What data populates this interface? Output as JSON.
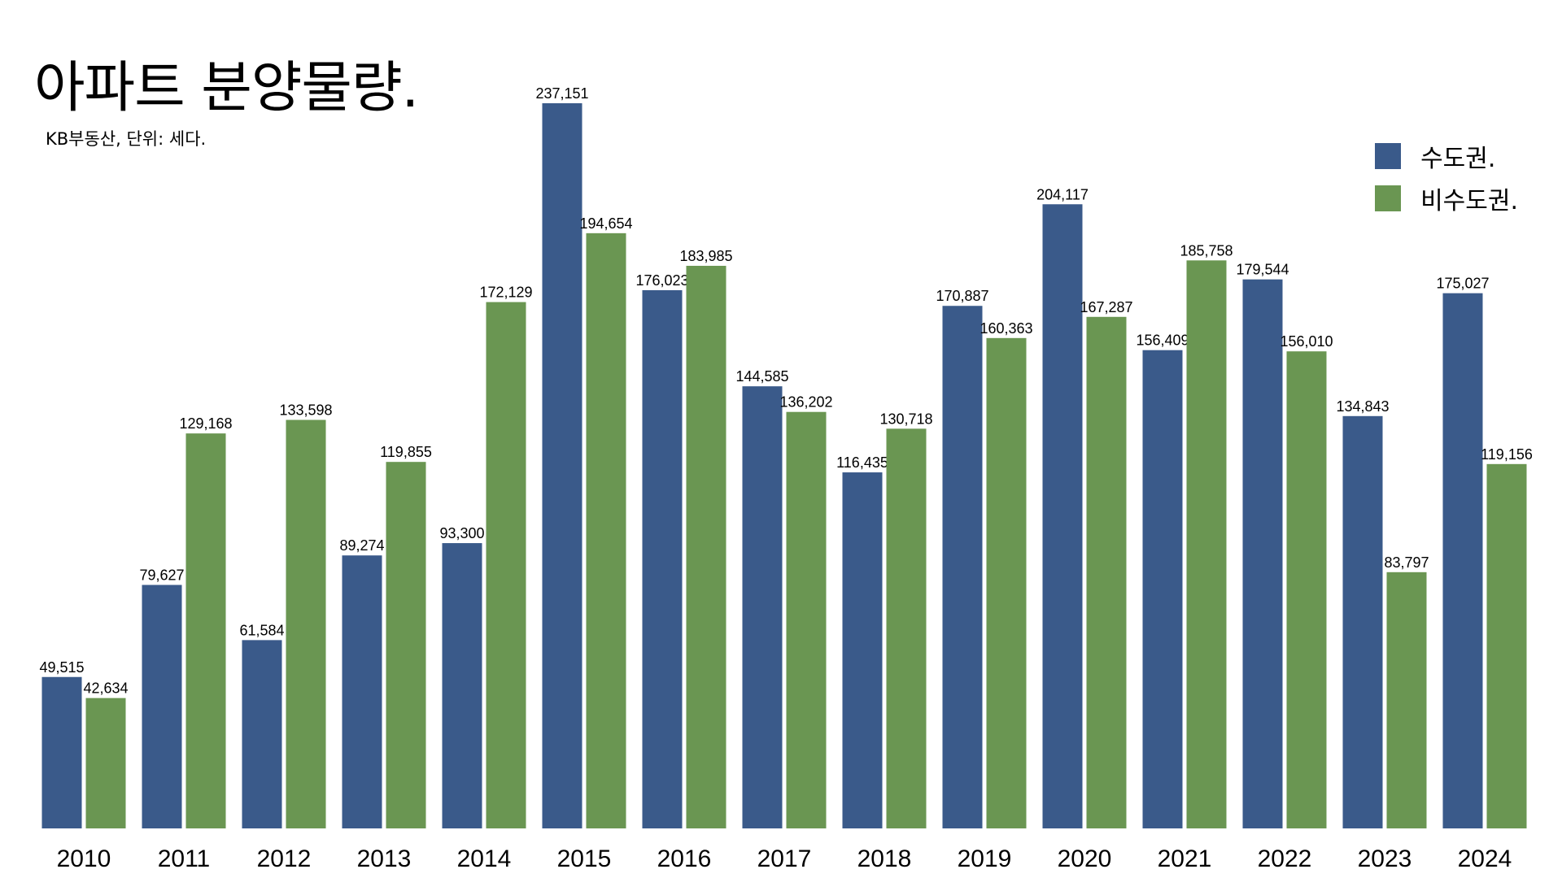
{
  "header": {
    "title": "아파트 분양물량.",
    "subtitle": "KB부동산, 단위: 세다."
  },
  "legend": [
    {
      "label": "수도권.",
      "color": "#3a5a8a"
    },
    {
      "label": "비수도권.",
      "color": "#6a9652"
    }
  ],
  "chart_data": {
    "type": "bar",
    "title": "아파트 분양물량.",
    "subtitle": "KB부동산, 단위: 세다.",
    "categories": [
      "2010",
      "2011",
      "2012",
      "2013",
      "2014",
      "2015",
      "2016",
      "2017",
      "2018",
      "2019",
      "2020",
      "2021",
      "2022",
      "2023",
      "2024"
    ],
    "series": [
      {
        "name": "수도권.",
        "color": "#3a5a8a",
        "values": [
          49515,
          79627,
          61584,
          89274,
          93300,
          237151,
          176023,
          144585,
          116435,
          170887,
          204117,
          156409,
          179544,
          134843,
          175027
        ]
      },
      {
        "name": "비수도권.",
        "color": "#6a9652",
        "values": [
          42634,
          129168,
          133598,
          119855,
          172129,
          194654,
          183985,
          136202,
          130718,
          160363,
          167287,
          185758,
          156010,
          83797,
          119156
        ]
      }
    ],
    "value_labels": [
      [
        "49,515",
        "79,627",
        "61,584",
        "89,274",
        "93,300",
        "237,151",
        "176,023",
        "144,585",
        "116,435",
        "170,887",
        "204,117",
        "156,409",
        "179,544",
        "134,843",
        "175,027"
      ],
      [
        "42,634",
        "129,168",
        "133,598",
        "119,855",
        "172,129",
        "194,654",
        "183,985",
        "136,202",
        "130,718",
        "160,363",
        "167,287",
        "185,758",
        "156,010",
        "83,797",
        "119,156"
      ]
    ],
    "ylim": [
      0,
      237151
    ],
    "grid": false,
    "legend_position": "top-right"
  }
}
